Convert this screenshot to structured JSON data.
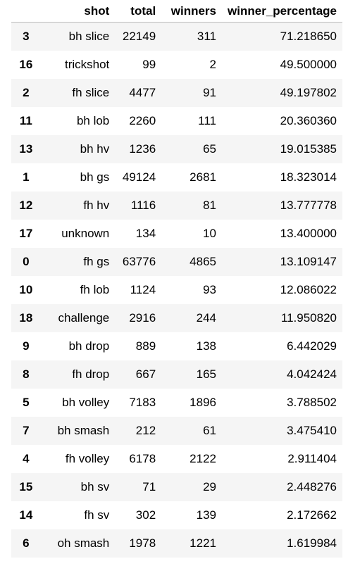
{
  "columns": [
    "",
    "shot",
    "total",
    "winners",
    "winner_percentage"
  ],
  "rows": [
    {
      "index": "3",
      "shot": "bh slice",
      "total": "22149",
      "winners": "311",
      "winner_percentage": "71.218650"
    },
    {
      "index": "16",
      "shot": "trickshot",
      "total": "99",
      "winners": "2",
      "winner_percentage": "49.500000"
    },
    {
      "index": "2",
      "shot": "fh slice",
      "total": "4477",
      "winners": "91",
      "winner_percentage": "49.197802"
    },
    {
      "index": "11",
      "shot": "bh lob",
      "total": "2260",
      "winners": "111",
      "winner_percentage": "20.360360"
    },
    {
      "index": "13",
      "shot": "bh hv",
      "total": "1236",
      "winners": "65",
      "winner_percentage": "19.015385"
    },
    {
      "index": "1",
      "shot": "bh gs",
      "total": "49124",
      "winners": "2681",
      "winner_percentage": "18.323014"
    },
    {
      "index": "12",
      "shot": "fh hv",
      "total": "1116",
      "winners": "81",
      "winner_percentage": "13.777778"
    },
    {
      "index": "17",
      "shot": "unknown",
      "total": "134",
      "winners": "10",
      "winner_percentage": "13.400000"
    },
    {
      "index": "0",
      "shot": "fh gs",
      "total": "63776",
      "winners": "4865",
      "winner_percentage": "13.109147"
    },
    {
      "index": "10",
      "shot": "fh lob",
      "total": "1124",
      "winners": "93",
      "winner_percentage": "12.086022"
    },
    {
      "index": "18",
      "shot": "challenge",
      "total": "2916",
      "winners": "244",
      "winner_percentage": "11.950820"
    },
    {
      "index": "9",
      "shot": "bh drop",
      "total": "889",
      "winners": "138",
      "winner_percentage": "6.442029"
    },
    {
      "index": "8",
      "shot": "fh drop",
      "total": "667",
      "winners": "165",
      "winner_percentage": "4.042424"
    },
    {
      "index": "5",
      "shot": "bh volley",
      "total": "7183",
      "winners": "1896",
      "winner_percentage": "3.788502"
    },
    {
      "index": "7",
      "shot": "bh smash",
      "total": "212",
      "winners": "61",
      "winner_percentage": "3.475410"
    },
    {
      "index": "4",
      "shot": "fh volley",
      "total": "6178",
      "winners": "2122",
      "winner_percentage": "2.911404"
    },
    {
      "index": "15",
      "shot": "bh sv",
      "total": "71",
      "winners": "29",
      "winner_percentage": "2.448276"
    },
    {
      "index": "14",
      "shot": "fh sv",
      "total": "302",
      "winners": "139",
      "winner_percentage": "2.172662"
    },
    {
      "index": "6",
      "shot": "oh smash",
      "total": "1978",
      "winners": "1221",
      "winner_percentage": "1.619984"
    }
  ],
  "colors": {
    "row_stripe": "#f5f5f5",
    "row_plain": "#ffffff",
    "header_rule": "#bdbdbd"
  }
}
